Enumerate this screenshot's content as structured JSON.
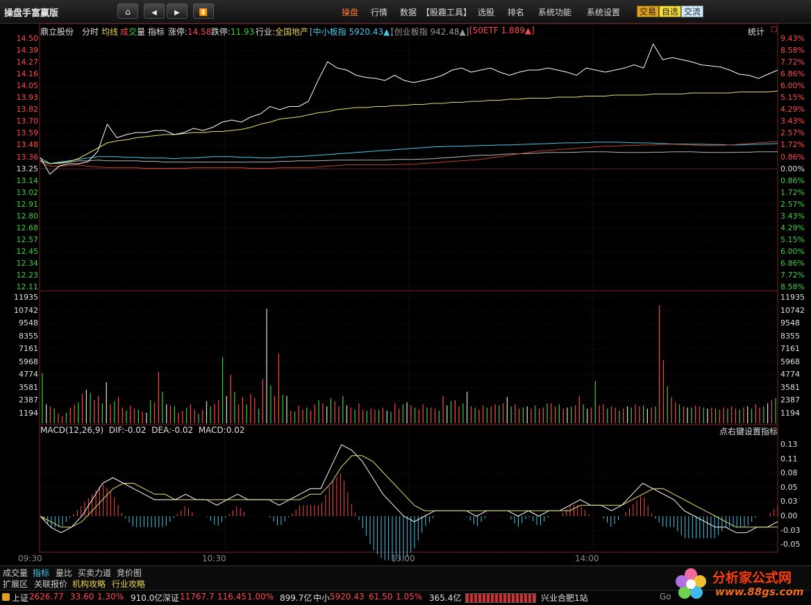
{
  "app": {
    "title": "操盘手富赢版"
  },
  "nav": {
    "home_icon": "⌂",
    "prev_icon": "◀",
    "next_icon": "▶",
    "collapse_icon": "⏬",
    "menu": [
      "操盘",
      "行情",
      "数据",
      "【股趣工具】",
      "选股",
      "排名",
      "系统功能",
      "系统设置"
    ],
    "buttons": [
      "交易",
      "自选",
      "交流"
    ]
  },
  "header": {
    "stock_name": "鼎立股份",
    "tab_fenshi": "分时",
    "tab_junxian": "均线",
    "tab_cheng": "成",
    "tab_jiao": "交",
    "tab_liang": "量",
    "tab_zhibiao": "指标",
    "limit_up_label": "涨停:",
    "limit_up": "14.58",
    "limit_down_label": "跌停:",
    "limit_down": "11.93",
    "industry_label": "行业:",
    "industry": "全国地产",
    "idx1": "[中小板指 5920.43▲]",
    "idx2": "[创业板指 942.48▲]",
    "idx3": "[50ETF 1.889▲]",
    "stat": "统计",
    "corner": "□"
  },
  "price_axis": {
    "left": [
      "14.50",
      "14.39",
      "14.27",
      "14.16",
      "14.05",
      "13.93",
      "13.82",
      "13.70",
      "13.59",
      "13.48",
      "13.36",
      "13.25",
      "13.14",
      "13.02",
      "12.91",
      "12.80",
      "12.68",
      "12.57",
      "12.45",
      "12.34",
      "12.23",
      "12.11"
    ],
    "right": [
      "9.43%",
      "8.58%",
      "7.72%",
      "6.86%",
      "6.00%",
      "5.15%",
      "4.29%",
      "3.43%",
      "2.57%",
      "1.72%",
      "0.86%",
      "0.00%",
      "0.86%",
      "1.72%",
      "2.57%",
      "3.43%",
      "4.29%",
      "5.15%",
      "6.00%",
      "6.86%",
      "7.72%",
      "8.58%"
    ]
  },
  "volume_axis": [
    "11935",
    "10742",
    "9548",
    "8355",
    "7161",
    "5968",
    "4774",
    "3581",
    "2387",
    "1194"
  ],
  "macd": {
    "label": "MACD(12,26,9)",
    "dif": "DIF:-0.02",
    "dea": "DEA:-0.02",
    "macd": "MACD:0.02",
    "hint": "点右键设置指标",
    "axis": [
      "0.13",
      "0.11",
      "0.08",
      "0.05",
      "0.03",
      "0.00",
      "-0.03",
      "-0.05"
    ]
  },
  "time_axis": [
    "09:30",
    "10:30",
    "13:00",
    "14:00"
  ],
  "tabs_row1": [
    "成交量",
    "指标",
    "量比",
    "买卖力道",
    "竞价图"
  ],
  "tabs_row2": [
    "扩展区",
    "关联报价",
    "机构攻略",
    "行业攻略"
  ],
  "status": {
    "sh_label": "上证",
    "sh_val": "2626.77",
    "sh_chg": "33.60",
    "sh_pct": "1.30%",
    "sh_amt": "910.0亿",
    "sz_label": "深证",
    "sz_val": "11767.7",
    "sz_chg": "116.45",
    "sz_pct": "1.00%",
    "sz_amt": "899.7亿",
    "zx_label": "中小",
    "zx_val": "5920.43",
    "zx_chg": "61.50",
    "zx_pct": "1.05%",
    "zx_amt": "365.4亿",
    "broker": "兴业合肥1站",
    "watermark_text": "分析家公式网",
    "watermark_url": "www.88gs.com",
    "google_text": "Go"
  },
  "colors": {
    "up": "#ff4a4a",
    "down": "#3ccf3c",
    "price_line": "#ffffff",
    "avg_line": "#e8e070",
    "accent": "#ff7a2a"
  },
  "chart_data": {
    "type": "line",
    "price": {
      "prev_close": 13.25,
      "price_series": [
        13.36,
        13.2,
        13.28,
        13.3,
        13.3,
        13.32,
        13.42,
        13.68,
        13.55,
        13.58,
        13.6,
        13.6,
        13.62,
        13.62,
        13.58,
        13.6,
        13.64,
        13.62,
        13.65,
        13.7,
        13.72,
        13.7,
        13.75,
        13.78,
        13.85,
        13.82,
        13.85,
        13.85,
        13.9,
        14.1,
        14.28,
        14.22,
        14.2,
        14.15,
        14.13,
        14.12,
        14.1,
        14.15,
        14.1,
        14.08,
        14.1,
        14.12,
        14.15,
        14.2,
        14.22,
        14.18,
        14.2,
        14.22,
        14.18,
        14.15,
        14.18,
        14.2,
        14.2,
        14.22,
        14.2,
        14.18,
        14.15,
        14.22,
        14.2,
        14.18,
        14.2,
        14.22,
        14.25,
        14.22,
        14.45,
        14.3,
        14.32,
        14.3,
        14.28,
        14.25,
        14.24,
        14.23,
        14.2,
        14.16,
        14.15,
        14.12,
        14.16,
        14.2
      ],
      "avg_series": [
        13.33,
        13.3,
        13.31,
        13.32,
        13.35,
        13.4,
        13.45,
        13.5,
        13.52,
        13.53,
        13.55,
        13.56,
        13.57,
        13.58,
        13.58,
        13.59,
        13.6,
        13.6,
        13.61,
        13.61,
        13.62,
        13.63,
        13.65,
        13.68,
        13.7,
        13.73,
        13.74,
        13.75,
        13.77,
        13.79,
        13.8,
        13.82,
        13.83,
        13.84,
        13.84,
        13.85,
        13.85,
        13.86,
        13.86,
        13.87,
        13.87,
        13.88,
        13.88,
        13.89,
        13.89,
        13.9,
        13.9,
        13.91,
        13.91,
        13.92,
        13.92,
        13.93,
        13.93,
        13.93,
        13.94,
        13.94,
        13.94,
        13.95,
        13.95,
        13.95,
        13.96,
        13.96,
        13.96,
        13.96,
        13.97,
        13.97,
        13.97,
        13.97,
        13.98,
        13.98,
        13.98,
        13.98,
        13.98,
        13.99,
        13.99,
        13.99,
        13.99,
        14.0
      ],
      "index_lines": [
        {
          "name": "中小板指",
          "pct": [
            0.8,
            0.4,
            0.5,
            0.6,
            0.7,
            0.8,
            0.9,
            0.9,
            0.9,
            0.85,
            0.85,
            0.8,
            0.8,
            0.8,
            0.75,
            0.8,
            0.8,
            0.85,
            0.9,
            0.9,
            0.9,
            0.85,
            0.85,
            0.8,
            0.8,
            0.85,
            0.9,
            0.9,
            0.95,
            1.0,
            1.05,
            1.1,
            1.15,
            1.2,
            1.25,
            1.3,
            1.35,
            1.4,
            1.45,
            1.5,
            1.55,
            1.6,
            1.62,
            1.65,
            1.65,
            1.68,
            1.7,
            1.72,
            1.75,
            1.75,
            1.78,
            1.8,
            1.82,
            1.85,
            1.88,
            1.9,
            1.9,
            1.92,
            1.95,
            1.95,
            1.95,
            1.93,
            1.9,
            1.9,
            1.88,
            1.85,
            1.82,
            1.82,
            1.8,
            1.8,
            1.78,
            1.78,
            1.75,
            1.75,
            1.78,
            1.8,
            1.82,
            1.85
          ]
        },
        {
          "name": "创业板指",
          "pct": [
            0.6,
            0.4,
            0.4,
            0.5,
            0.6,
            0.6,
            0.65,
            0.6,
            0.6,
            0.6,
            0.6,
            0.55,
            0.55,
            0.5,
            0.5,
            0.5,
            0.5,
            0.5,
            0.5,
            0.5,
            0.5,
            0.5,
            0.5,
            0.5,
            0.5,
            0.55,
            0.55,
            0.6,
            0.6,
            0.6,
            0.62,
            0.65,
            0.65,
            0.65,
            0.65,
            0.65,
            0.65,
            0.7,
            0.7,
            0.7,
            0.72,
            0.75,
            0.8,
            0.85,
            0.9,
            0.95,
            1.0,
            1.0,
            1.05,
            1.1,
            1.1,
            1.12,
            1.15,
            1.2,
            1.2,
            1.2,
            1.22,
            1.25,
            1.25,
            1.25,
            1.22,
            1.2,
            1.2,
            1.2,
            1.22,
            1.22,
            1.25,
            1.25,
            1.25,
            1.22,
            1.2,
            1.2,
            1.2,
            1.22,
            1.22,
            1.25,
            1.25,
            1.25
          ]
        },
        {
          "name": "50ETF",
          "pct": [
            0.5,
            0.2,
            0.2,
            0.25,
            0.3,
            0.2,
            0.15,
            0.1,
            0.1,
            0.1,
            0.1,
            0.05,
            0.05,
            0.05,
            0.05,
            0.05,
            0.1,
            0.1,
            0.1,
            0.1,
            0.1,
            0.1,
            0.05,
            0.05,
            0.05,
            0.1,
            0.1,
            0.1,
            0.1,
            0.15,
            0.2,
            0.25,
            0.3,
            0.3,
            0.3,
            0.3,
            0.3,
            0.3,
            0.35,
            0.35,
            0.4,
            0.45,
            0.5,
            0.55,
            0.6,
            0.65,
            0.7,
            0.8,
            0.9,
            1.0,
            1.1,
            1.2,
            1.3,
            1.35,
            1.4,
            1.45,
            1.5,
            1.55,
            1.6,
            1.65,
            1.65,
            1.7,
            1.72,
            1.75,
            1.75,
            1.8,
            1.8,
            1.78,
            1.75,
            1.72,
            1.7,
            1.72,
            1.75,
            1.8,
            1.85,
            1.9,
            1.95,
            2.0
          ]
        }
      ]
    },
    "volume": {
      "max": 11935,
      "values": [
        4774,
        1800,
        1600,
        1400,
        900,
        700,
        1000,
        1500,
        1800,
        2000,
        2800,
        3200,
        2900,
        2200,
        2600,
        1900,
        3900,
        1800,
        2100,
        2500,
        1500,
        1200,
        1700,
        1400,
        1300,
        1100,
        1000,
        2200,
        2000,
        4900,
        3000,
        1800,
        1700,
        1600,
        1000,
        1200,
        1500,
        1800,
        1300,
        900,
        1300,
        2100,
        1600,
        1800,
        2200,
        6300,
        2600,
        4600,
        3000,
        1800,
        2500,
        1800,
        2800,
        2400,
        1400,
        4200,
        10900,
        3600,
        2600,
        6600,
        2700,
        2600,
        1200,
        1100,
        1700,
        1300,
        1500,
        1200,
        1800,
        2200,
        1900,
        1600,
        2400,
        2100,
        1600,
        2600,
        1700,
        1500,
        1300,
        1900,
        1300,
        1200,
        1400,
        1300,
        1300,
        1500,
        1200,
        1100,
        1900,
        1400,
        1800,
        2000,
        1700,
        1500,
        1300,
        1800,
        1500,
        1500,
        1400,
        1200,
        2600,
        1700,
        2100,
        2200,
        1600,
        1900,
        3000,
        1600,
        1500,
        1300,
        1700,
        1500,
        1600,
        1800,
        1700,
        1900,
        2500,
        1600,
        1800,
        1400,
        1500,
        1600,
        1400,
        1700,
        1400,
        1500,
        1900,
        1900,
        1600,
        1800,
        1400,
        1500,
        1600,
        1700,
        2600,
        1800,
        1400,
        1500,
        4000,
        1700,
        1800,
        1400,
        1600,
        1500,
        1200,
        1400,
        1600,
        1500,
        1800,
        1600,
        1700,
        1400,
        1500,
        1600,
        11200,
        6000,
        3500,
        2500,
        2000,
        1800,
        1600,
        1500,
        1500,
        1700,
        1600,
        1500,
        1400,
        1500,
        1400,
        1300,
        1500,
        1400,
        1600,
        1400,
        1300,
        1500,
        1600,
        1400,
        1800,
        1500,
        1600,
        1900,
        2200,
        2400
      ]
    },
    "macd": {
      "dif": [
        -0.0,
        -0.02,
        -0.03,
        -0.02,
        0.0,
        0.03,
        0.06,
        0.07,
        0.06,
        0.05,
        0.04,
        0.03,
        0.03,
        0.03,
        0.04,
        0.03,
        0.03,
        0.02,
        0.03,
        0.04,
        0.03,
        0.03,
        0.03,
        0.02,
        0.03,
        0.04,
        0.05,
        0.05,
        0.09,
        0.13,
        0.12,
        0.1,
        0.07,
        0.04,
        0.02,
        0.0,
        -0.01,
        0.0,
        0.01,
        0.01,
        0.01,
        0.01,
        0.0,
        0.01,
        0.01,
        0.01,
        0.0,
        0.01,
        0.0,
        0.01,
        0.01,
        0.02,
        0.03,
        0.02,
        0.02,
        0.01,
        0.02,
        0.04,
        0.06,
        0.05,
        0.04,
        0.03,
        0.01,
        0.0,
        -0.01,
        -0.02,
        -0.02,
        -0.03,
        -0.03,
        -0.02,
        -0.02,
        -0.01
      ],
      "dea": [
        -0.0,
        -0.01,
        -0.02,
        -0.02,
        -0.01,
        0.01,
        0.03,
        0.05,
        0.06,
        0.06,
        0.05,
        0.04,
        0.04,
        0.03,
        0.03,
        0.03,
        0.03,
        0.03,
        0.03,
        0.03,
        0.03,
        0.03,
        0.03,
        0.03,
        0.03,
        0.03,
        0.04,
        0.04,
        0.06,
        0.09,
        0.11,
        0.11,
        0.1,
        0.08,
        0.06,
        0.04,
        0.02,
        0.01,
        0.01,
        0.01,
        0.01,
        0.01,
        0.01,
        0.01,
        0.01,
        0.01,
        0.01,
        0.01,
        0.01,
        0.01,
        0.01,
        0.01,
        0.02,
        0.02,
        0.02,
        0.02,
        0.02,
        0.03,
        0.04,
        0.05,
        0.05,
        0.04,
        0.03,
        0.02,
        0.01,
        0.0,
        -0.01,
        -0.02,
        -0.02,
        -0.02,
        -0.02,
        -0.02
      ]
    }
  }
}
